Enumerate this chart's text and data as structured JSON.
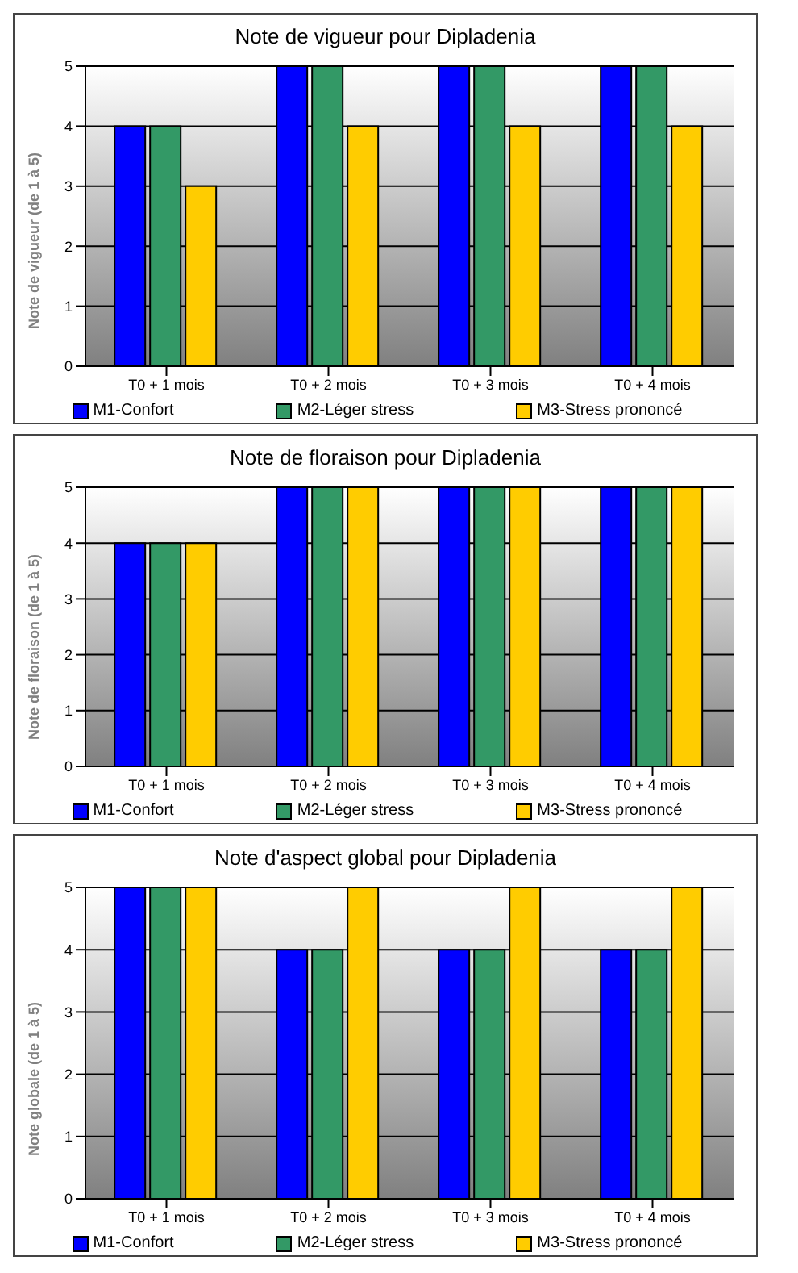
{
  "chart_data": [
    {
      "type": "bar",
      "title": "Note de vigueur pour Dipladenia",
      "ylabel": "Note de vigueur (de 1 à 5)",
      "categories": [
        "T0 + 1 mois",
        "T0 + 2 mois",
        "T0 + 3 mois",
        "T0 + 4 mois"
      ],
      "series": [
        {
          "name": "M1-Confort",
          "color": "#0000ff",
          "values": [
            4,
            5,
            5,
            5
          ]
        },
        {
          "name": "M2-Léger stress",
          "color": "#339966",
          "values": [
            4,
            5,
            5,
            5
          ]
        },
        {
          "name": "M3-Stress prononcé",
          "color": "#ffcc00",
          "values": [
            3,
            4,
            4,
            4
          ]
        }
      ],
      "ylim": [
        0,
        5
      ],
      "yticks": [
        0,
        1,
        2,
        3,
        4,
        5
      ],
      "grid": "y",
      "legend": "bottom"
    },
    {
      "type": "bar",
      "title": "Note de floraison pour Dipladenia",
      "ylabel": "Note de floraison (de 1 à 5)",
      "categories": [
        "T0 + 1 mois",
        "T0 + 2 mois",
        "T0 + 3 mois",
        "T0 + 4 mois"
      ],
      "series": [
        {
          "name": "M1-Confort",
          "color": "#0000ff",
          "values": [
            4,
            5,
            5,
            5
          ]
        },
        {
          "name": "M2-Léger stress",
          "color": "#339966",
          "values": [
            4,
            5,
            5,
            5
          ]
        },
        {
          "name": "M3-Stress prononcé",
          "color": "#ffcc00",
          "values": [
            4,
            5,
            5,
            5
          ]
        }
      ],
      "ylim": [
        0,
        5
      ],
      "yticks": [
        0,
        1,
        2,
        3,
        4,
        5
      ],
      "grid": "y",
      "legend": "bottom"
    },
    {
      "type": "bar",
      "title": "Note d'aspect global pour Dipladenia",
      "ylabel": "Note globale (de 1 à 5)",
      "categories": [
        "T0 + 1 mois",
        "T0 + 2 mois",
        "T0 + 3 mois",
        "T0 + 4 mois"
      ],
      "series": [
        {
          "name": "M1-Confort",
          "color": "#0000ff",
          "values": [
            5,
            4,
            4,
            4
          ]
        },
        {
          "name": "M2-Léger stress",
          "color": "#339966",
          "values": [
            5,
            4,
            4,
            4
          ]
        },
        {
          "name": "M3-Stress prononcé",
          "color": "#ffcc00",
          "values": [
            5,
            5,
            5,
            5
          ]
        }
      ],
      "ylim": [
        0,
        5
      ],
      "yticks": [
        0,
        1,
        2,
        3,
        4,
        5
      ],
      "grid": "y",
      "legend": "bottom"
    }
  ]
}
